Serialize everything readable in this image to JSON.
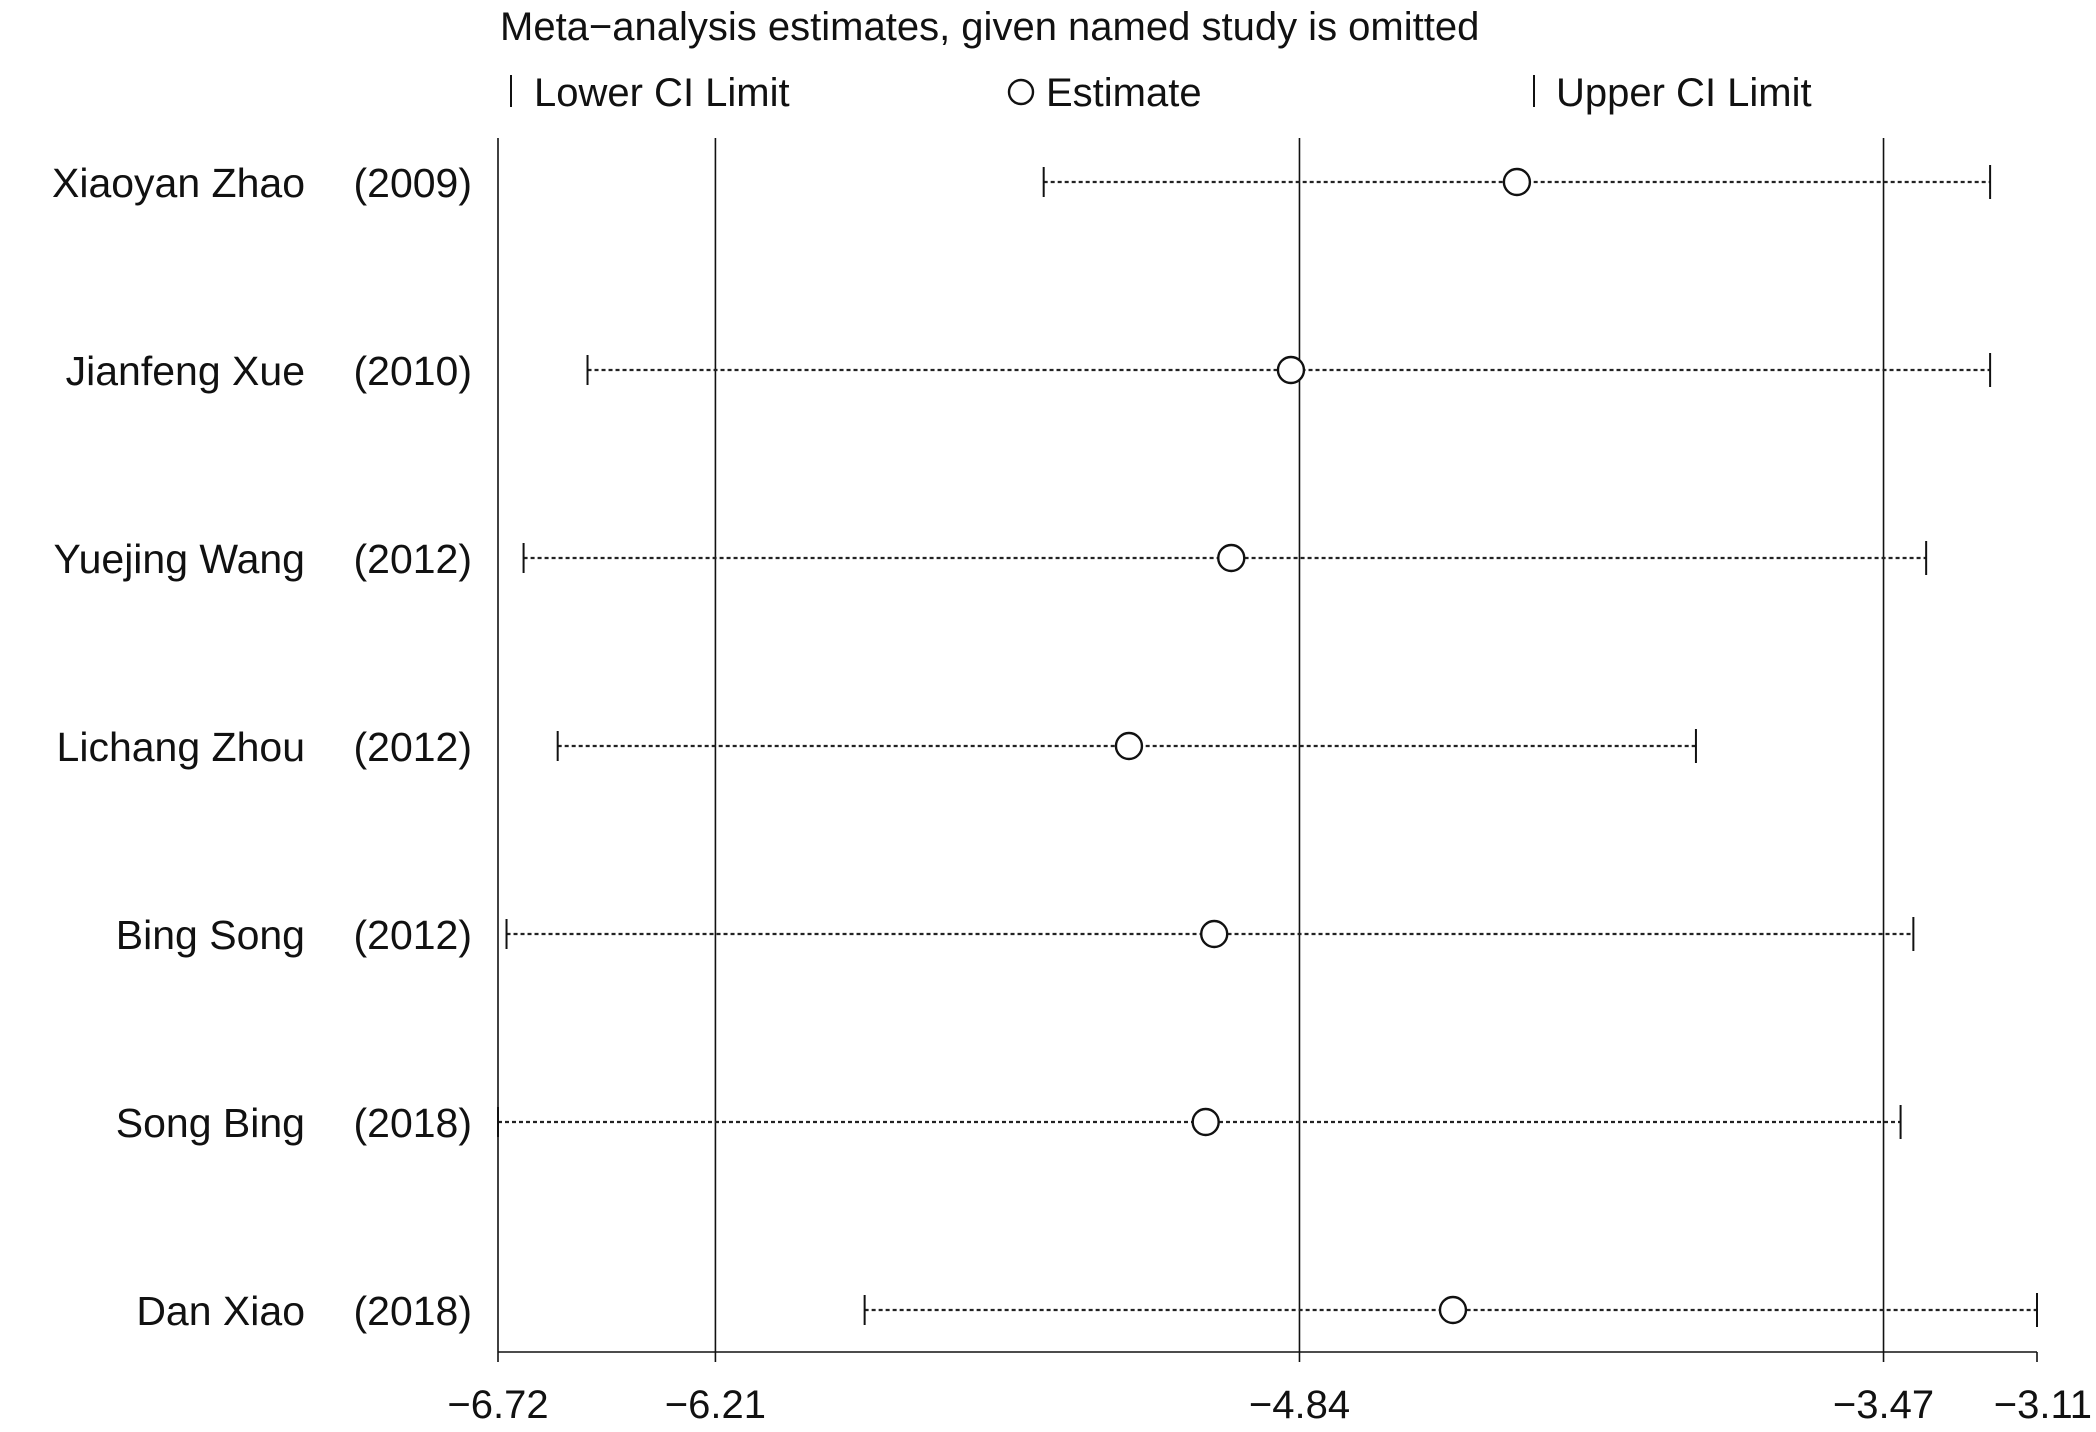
{
  "chart_data": {
    "type": "forest",
    "title": "Meta−analysis estimates, given named study is omitted",
    "legend": [
      {
        "symbol": "tick",
        "label": "Lower CI Limit"
      },
      {
        "symbol": "circle",
        "label": "Estimate"
      },
      {
        "symbol": "tick",
        "label": "Upper CI Limit"
      }
    ],
    "legend_position": "top",
    "xlim": [
      -6.72,
      -3.11
    ],
    "ticks": [
      {
        "value": -6.72,
        "label": "−6.72"
      },
      {
        "value": -6.21,
        "label": "−6.21"
      },
      {
        "value": -4.84,
        "label": "−4.84"
      },
      {
        "value": -3.47,
        "label": "−3.47"
      },
      {
        "value": -3.11,
        "label": "−3.11"
      }
    ],
    "reference_lines": [
      -6.72,
      -6.21,
      -4.84,
      -3.47
    ],
    "studies": [
      {
        "name": "Xiaoyan Zhao",
        "year": "(2009)",
        "lower": -5.44,
        "estimate": -4.33,
        "upper": -3.22
      },
      {
        "name": "Jianfeng Xue",
        "year": "(2010)",
        "lower": -6.51,
        "estimate": -4.86,
        "upper": -3.22
      },
      {
        "name": "Yuejing Wang",
        "year": "(2012)",
        "lower": -6.66,
        "estimate": -5.0,
        "upper": -3.37
      },
      {
        "name": "Lichang Zhou",
        "year": "(2012)",
        "lower": -6.58,
        "estimate": -5.24,
        "upper": -3.91
      },
      {
        "name": "Bing Song",
        "year": "(2012)",
        "lower": -6.7,
        "estimate": -5.04,
        "upper": -3.4
      },
      {
        "name": "Song Bing",
        "year": "(2018)",
        "lower": -6.72,
        "estimate": -5.06,
        "upper": -3.43
      },
      {
        "name": "Dan Xiao",
        "year": "(2018)",
        "lower": -5.86,
        "estimate": -4.48,
        "upper": -3.11
      }
    ]
  }
}
